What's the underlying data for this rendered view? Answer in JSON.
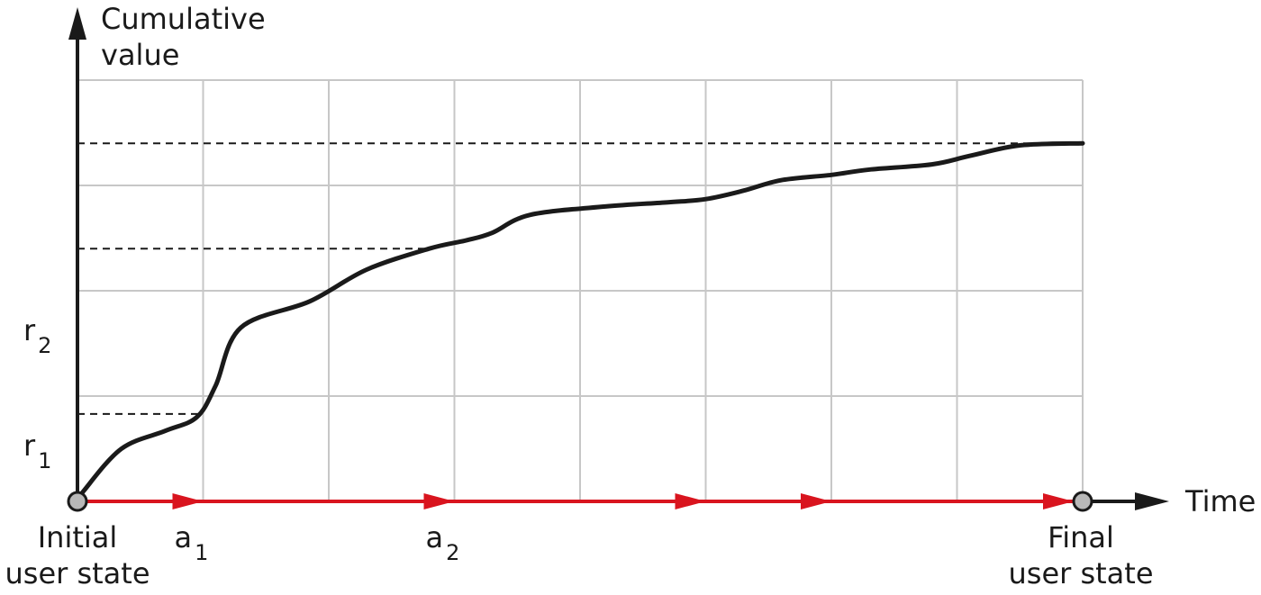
{
  "chart_data": {
    "type": "line",
    "ylabel_line1": "Cumulative",
    "ylabel_line2": "value",
    "xlabel": "Time",
    "start_label_line1": "Initial",
    "start_label_line2": "user state",
    "end_label_line1": "Final",
    "end_label_line2": "user state",
    "y_marks": [
      {
        "base": "r",
        "sub": "1"
      },
      {
        "base": "r",
        "sub": "2"
      }
    ],
    "x_marks": [
      {
        "base": "a",
        "sub": "1",
        "x": 1
      },
      {
        "base": "a",
        "sub": "2",
        "x": 3
      }
    ],
    "xlim": [
      0,
      8
    ],
    "ylim": [
      0,
      4
    ],
    "grid": true,
    "series": [
      {
        "x": [
          0,
          0.05,
          0.35,
          0.7,
          0.95,
          1.1,
          1.3,
          1.85,
          2.3,
          2.8,
          3.1,
          3.3,
          3.6,
          4.2,
          4.7,
          5.0,
          5.3,
          5.6,
          6.0,
          6.3,
          6.8,
          7.1,
          7.5,
          8.0
        ],
        "y": [
          0,
          0.1,
          0.5,
          0.67,
          0.8,
          1.1,
          1.65,
          1.9,
          2.2,
          2.4,
          2.48,
          2.55,
          2.72,
          2.8,
          2.84,
          2.87,
          2.95,
          3.05,
          3.1,
          3.15,
          3.2,
          3.28,
          3.38,
          3.4
        ]
      }
    ],
    "reference_levels": [
      0.83,
      2.4,
      3.4
    ],
    "action_arrows_x": [
      1,
      3,
      5,
      6,
      8
    ],
    "colors": {
      "curve": "#1a1a1a",
      "grid": "#c7c7c7",
      "axis": "#1a1a1a",
      "actions": "#d9141e",
      "state_point": "#b8b8b8"
    }
  }
}
